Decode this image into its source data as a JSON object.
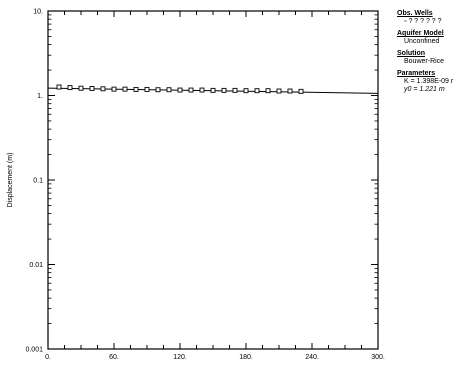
{
  "chart_data": {
    "type": "scatter",
    "ylabel": "Displacement (m)",
    "xlabel": "",
    "xlim": [
      0,
      300
    ],
    "ylim": [
      0.001,
      10
    ],
    "yscale": "log",
    "x_ticks": [
      "0.",
      "60.",
      "120.",
      "180.",
      "240.",
      "300."
    ],
    "y_ticks": [
      "0.001",
      "0.01",
      "0.1",
      "1.",
      "10."
    ],
    "grid": false,
    "legend_position": "right-outside",
    "observations": {
      "x": [
        10,
        20,
        30,
        40,
        50,
        60,
        70,
        80,
        90,
        100,
        110,
        120,
        130,
        140,
        150,
        160,
        170,
        180,
        190,
        200,
        210,
        220,
        230
      ],
      "y": [
        1.26,
        1.24,
        1.22,
        1.21,
        1.2,
        1.19,
        1.19,
        1.18,
        1.18,
        1.17,
        1.17,
        1.16,
        1.16,
        1.16,
        1.15,
        1.15,
        1.15,
        1.14,
        1.14,
        1.14,
        1.13,
        1.13,
        1.12
      ]
    },
    "fit_line": {
      "x": [
        0,
        300
      ],
      "y": [
        1.221,
        1.06
      ]
    }
  },
  "legend": {
    "obs_wells_header": "Obs. Wells",
    "obs_wells_value": "? ? ? ? ? ?",
    "aquifer_header": "Aquifer Model",
    "aquifer_value": "Unconfined",
    "solution_header": "Solution",
    "solution_value": "Bouwer-Rice",
    "parameters_header": "Parameters",
    "param_k": "K  = 1.398E-09 r",
    "param_y0_label": "y0",
    "param_y0_value": " = 1.221 m"
  },
  "colors": {
    "ink": "#000000",
    "background": "#ffffff"
  }
}
